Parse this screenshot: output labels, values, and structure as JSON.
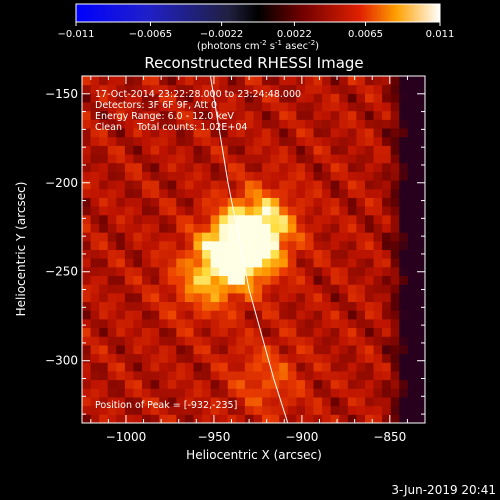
{
  "colorbar": {
    "ticks": [
      "-0.011",
      "-0.0065",
      "-0.0022",
      "0.0022",
      "0.0065",
      "0.011"
    ],
    "tick_values": [
      -0.011,
      -0.0065,
      -0.0022,
      0.0022,
      0.0065,
      0.011
    ],
    "min": -0.011,
    "max": 0.011,
    "units_main": "(photons cm",
    "units_exp1": "-2",
    "units_mid": " s",
    "units_exp2": "-1",
    "units_mid2": " asec",
    "units_exp3": "-2",
    "units_end": ")"
  },
  "chart_data": {
    "type": "heatmap",
    "title": "Reconstructed RHESSI Image",
    "xlabel": "Heliocentric X (arcsec)",
    "ylabel": "Heliocentric Y (arcsec)",
    "xlim": [
      -1025,
      -830
    ],
    "ylim": [
      -335,
      -140
    ],
    "xticks": [
      -1000,
      -950,
      -900,
      -850
    ],
    "xtick_labels": [
      "-1000",
      "-950",
      "-900",
      "-850"
    ],
    "yticks": [
      -150,
      -200,
      -250,
      -300
    ],
    "ytick_labels": [
      "-150",
      "-200",
      "-250",
      "-300"
    ],
    "colorscale": "red-temperature",
    "peak": {
      "x": -932,
      "y": -235
    },
    "sources": [
      {
        "x": -932,
        "y": -235,
        "strength": 1.0
      },
      {
        "x": -922,
        "y": -222,
        "strength": 0.55
      },
      {
        "x": -945,
        "y": -245,
        "strength": 0.45
      },
      {
        "x": -958,
        "y": -257,
        "strength": 0.35
      },
      {
        "x": -920,
        "y": -310,
        "strength": 0.35
      }
    ],
    "limb_curve": [
      [
        -952,
        -140
      ],
      [
        -942,
        -200
      ],
      [
        -930,
        -260
      ],
      [
        -916,
        -310
      ],
      [
        -908,
        -335
      ]
    ],
    "annotations": [
      "17-Oct-2014 23:22:28.000 to 23:24:48.000",
      "Detectors: 3F 6F 9F, Att 0",
      "Energy Range: 6.0 - 12.0 keV",
      "Clean     Total counts: 1.02E+04"
    ],
    "peak_label": "Position of Peak = [-932,-235]"
  },
  "footer": {
    "date": "3-Jun-2019 20:41"
  }
}
